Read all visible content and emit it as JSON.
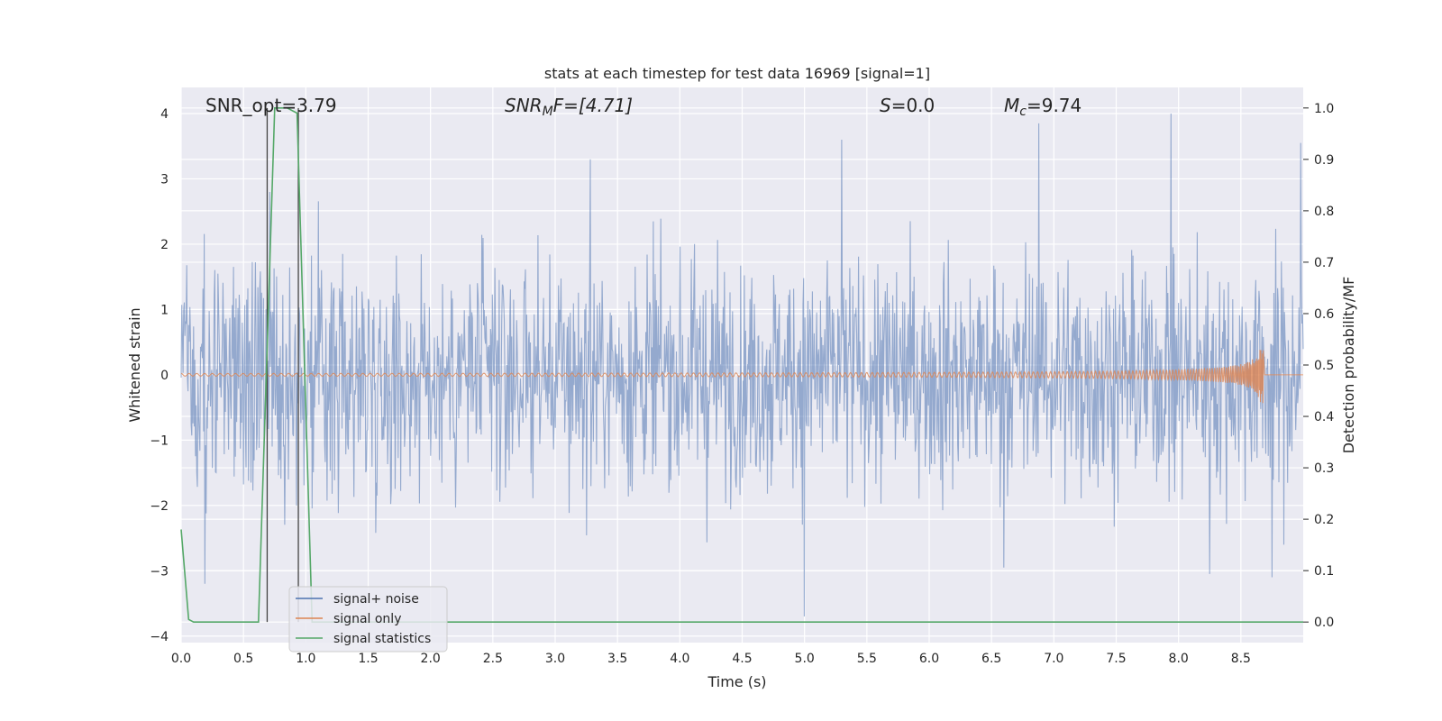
{
  "chart_data": {
    "type": "line",
    "title": "stats at each timestep for test data 16969 [signal=1]",
    "xlabel": "Time (s)",
    "ylabel": "Whitened strain",
    "y2label": "Detection probability/MF",
    "xlim": [
      0.0,
      9.0
    ],
    "ylim": [
      -4.1,
      4.4
    ],
    "y2lim": [
      -0.04,
      1.04
    ],
    "x_ticks": [
      0.0,
      0.5,
      1.0,
      1.5,
      2.0,
      2.5,
      3.0,
      3.5,
      4.0,
      4.5,
      5.0,
      5.5,
      6.0,
      6.5,
      7.0,
      7.5,
      8.0,
      8.5
    ],
    "x_tick_labels": [
      "0.0",
      "0.5",
      "1.0",
      "1.5",
      "2.0",
      "2.5",
      "3.0",
      "3.5",
      "4.0",
      "4.5",
      "5.0",
      "5.5",
      "6.0",
      "6.5",
      "7.0",
      "7.5",
      "8.0",
      "8.5"
    ],
    "y_ticks": [
      4,
      3,
      2,
      1,
      0,
      -1,
      -2,
      -3,
      -4
    ],
    "y_tick_labels": [
      "4",
      "3",
      "2",
      "1",
      "0",
      "−1",
      "−2",
      "−3",
      "−4"
    ],
    "y2_ticks": [
      1.0,
      0.9,
      0.8,
      0.7,
      0.6,
      0.5,
      0.4,
      0.3,
      0.2,
      0.1,
      0.0
    ],
    "y2_tick_labels": [
      "1.0",
      "0.9",
      "0.8",
      "0.7",
      "0.6",
      "0.5",
      "0.4",
      "0.3",
      "0.2",
      "0.1",
      "0.0"
    ],
    "grid": true,
    "legend_position": "lower-left",
    "annotations": {
      "snr_opt": "SNR_opt=3.79",
      "snr_mf_sym": "SNR",
      "snr_mf_sub": "M",
      "snr_mf_rest": "F=[4.71]",
      "s_sym": "S",
      "s_rest": "=0.0",
      "mc_sym": "M",
      "mc_sub": "c",
      "mc_rest": "=9.74"
    },
    "vlines": [
      0.69,
      0.94
    ],
    "series": [
      {
        "name": "signal+ noise",
        "color": "#4c72b0",
        "kind": "noise",
        "x_range": [
          0.0,
          9.0
        ],
        "typical_amplitude": 1.4,
        "peaks": [
          {
            "x": 0.19,
            "y": -3.2
          },
          {
            "x": 0.71,
            "y": 2.8
          },
          {
            "x": 3.28,
            "y": 3.3
          },
          {
            "x": 5.0,
            "y": -3.7
          },
          {
            "x": 5.3,
            "y": 3.6
          },
          {
            "x": 6.6,
            "y": -2.95
          },
          {
            "x": 6.88,
            "y": 3.85
          },
          {
            "x": 7.94,
            "y": 4.0
          },
          {
            "x": 8.25,
            "y": -3.05
          },
          {
            "x": 8.75,
            "y": -3.1
          },
          {
            "x": 8.98,
            "y": 3.55
          }
        ]
      },
      {
        "name": "signal only",
        "color": "#dd8452",
        "kind": "chirp",
        "x_range": [
          0.0,
          8.68
        ],
        "peak_x": 8.66,
        "peak_amplitude": 0.45
      },
      {
        "name": "signal statistics",
        "color": "#55a868",
        "axis": "right",
        "x": [
          0.0,
          0.06,
          0.1,
          0.62,
          0.75,
          0.85,
          0.93,
          1.05,
          1.06,
          9.0
        ],
        "y": [
          0.18,
          0.005,
          0.0,
          0.0,
          1.0,
          1.0,
          0.99,
          0.0,
          0.0,
          0.0
        ]
      }
    ]
  }
}
